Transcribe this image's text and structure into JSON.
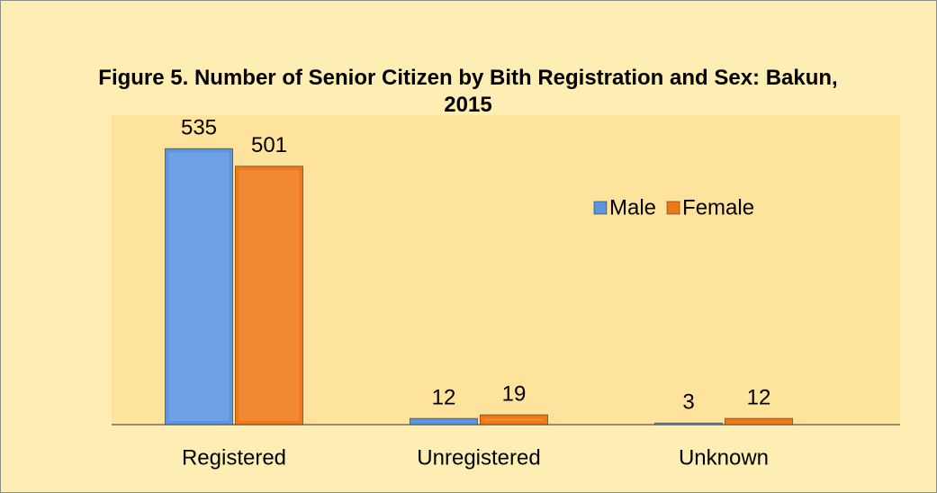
{
  "chart_data": {
    "type": "bar",
    "title": "Figure 5. Number of Senior Citizen by Bith Registration and Sex: Bakun, 2015",
    "categories": [
      "Registered",
      "Unregistered",
      "Unknown"
    ],
    "series": [
      {
        "name": "Male",
        "color": "#5b95e0",
        "values": [
          535,
          12,
          3
        ]
      },
      {
        "name": "Female",
        "color": "#f07818",
        "values": [
          501,
          19,
          12
        ]
      }
    ],
    "ylim": [
      0,
      600
    ],
    "legend": "right"
  }
}
